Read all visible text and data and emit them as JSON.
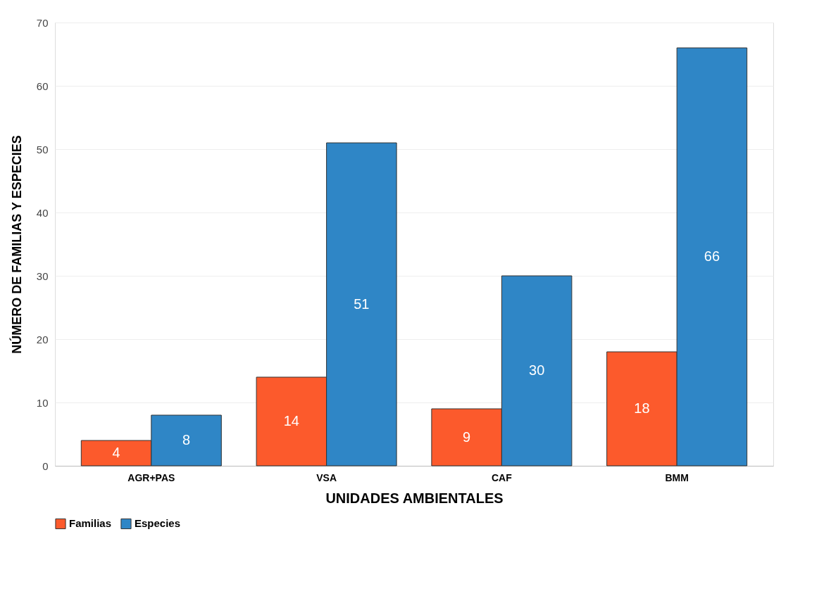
{
  "chart_data": {
    "type": "bar",
    "xlabel": "UNIDADES AMBIENTALES",
    "ylabel": "NÚMERO DE FAMILIAS Y ESPECIES",
    "categories": [
      "AGR+PAS",
      "VSA",
      "CAF",
      "BMM"
    ],
    "series": [
      {
        "name": "Familias",
        "color": "#fc5a2c",
        "values": [
          4,
          14,
          9,
          18
        ]
      },
      {
        "name": "Especies",
        "color": "#2f86c6",
        "values": [
          8,
          51,
          30,
          66
        ]
      }
    ],
    "ylim": [
      0,
      70
    ],
    "yticks": [
      0,
      10,
      20,
      30,
      40,
      50,
      60,
      70
    ],
    "grid": "y",
    "legend": "bottom",
    "data_labels": true
  }
}
